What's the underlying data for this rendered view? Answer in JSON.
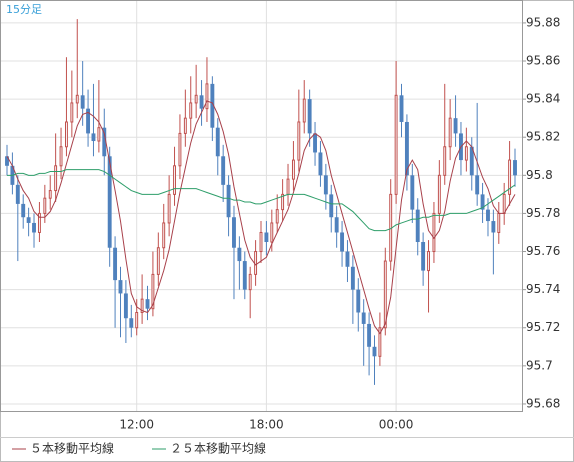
{
  "chart_data": {
    "type": "candlestick",
    "title": "15分足",
    "categories": [
      null,
      null,
      null,
      null,
      null,
      null,
      null,
      null,
      null,
      null,
      null,
      null,
      null,
      null,
      null,
      null,
      null,
      null,
      null,
      null,
      null,
      null,
      null,
      null,
      "12:00",
      null,
      null,
      null,
      null,
      null,
      null,
      null,
      null,
      null,
      null,
      null,
      null,
      null,
      null,
      null,
      null,
      null,
      null,
      null,
      null,
      null,
      null,
      null,
      "18:00",
      null,
      null,
      null,
      null,
      null,
      null,
      null,
      null,
      null,
      null,
      null,
      null,
      null,
      null,
      null,
      null,
      null,
      null,
      null,
      null,
      null,
      null,
      null,
      "00:00",
      null,
      null,
      null,
      null,
      null,
      null,
      null,
      null,
      null,
      null,
      null,
      null,
      null,
      null,
      null,
      null,
      null,
      null,
      null,
      null,
      null,
      null
    ],
    "open": [
      95.81,
      95.805,
      95.795,
      95.785,
      95.778,
      95.775,
      95.77,
      95.78,
      95.788,
      95.792,
      95.805,
      95.815,
      95.828,
      95.838,
      95.842,
      95.835,
      95.822,
      95.818,
      95.825,
      95.81,
      95.762,
      95.745,
      95.738,
      95.725,
      95.72,
      95.728,
      95.735,
      95.73,
      95.748,
      95.762,
      95.775,
      95.79,
      95.805,
      95.822,
      95.83,
      95.838,
      95.842,
      95.835,
      95.848,
      95.825,
      95.81,
      95.795,
      95.778,
      95.762,
      95.755,
      95.74,
      95.748,
      95.76,
      95.77,
      95.765,
      95.775,
      95.782,
      95.79,
      95.798,
      95.808,
      95.828,
      95.84,
      95.822,
      95.812,
      95.8,
      95.79,
      95.778,
      95.77,
      95.76,
      95.752,
      95.74,
      95.728,
      95.722,
      95.71,
      95.705,
      95.72,
      95.755,
      95.79,
      95.842,
      95.828,
      95.8,
      95.782,
      95.765,
      95.75,
      95.76,
      95.78,
      95.8,
      95.815,
      95.83,
      95.822,
      95.808,
      95.815,
      95.8,
      95.79,
      95.782,
      95.776,
      95.77,
      95.78,
      95.79,
      95.808
    ],
    "high": [
      95.816,
      95.812,
      95.8,
      95.79,
      95.783,
      95.78,
      95.786,
      95.795,
      95.8,
      95.822,
      95.825,
      95.862,
      95.855,
      95.882,
      95.86,
      95.845,
      95.848,
      95.85,
      95.835,
      95.815,
      95.768,
      95.752,
      95.745,
      95.732,
      95.735,
      95.748,
      95.742,
      95.76,
      95.77,
      95.785,
      95.8,
      95.815,
      95.832,
      95.845,
      95.852,
      95.858,
      95.85,
      95.862,
      95.852,
      95.83,
      95.816,
      95.8,
      95.784,
      95.768,
      95.76,
      95.752,
      95.766,
      95.776,
      95.776,
      95.782,
      95.79,
      95.798,
      95.806,
      95.818,
      95.845,
      95.85,
      95.845,
      95.828,
      95.818,
      95.806,
      95.795,
      95.784,
      95.776,
      95.766,
      95.758,
      95.746,
      95.735,
      95.728,
      95.716,
      95.728,
      95.762,
      95.798,
      95.86,
      95.848,
      95.832,
      95.806,
      95.788,
      95.77,
      95.766,
      95.786,
      95.808,
      95.848,
      95.84,
      95.842,
      95.828,
      95.825,
      95.82,
      95.838,
      95.796,
      95.788,
      95.782,
      95.786,
      95.796,
      95.818,
      95.814
    ],
    "low": [
      95.8,
      95.79,
      95.755,
      95.772,
      95.768,
      95.762,
      95.765,
      95.775,
      95.782,
      95.786,
      95.798,
      95.81,
      95.82,
      95.83,
      95.826,
      95.815,
      95.81,
      95.812,
      95.8,
      95.752,
      95.72,
      95.715,
      95.712,
      95.715,
      95.716,
      95.722,
      95.724,
      95.726,
      95.742,
      95.756,
      95.768,
      95.784,
      95.798,
      95.815,
      95.822,
      95.83,
      95.826,
      95.828,
      95.818,
      95.8,
      95.786,
      95.768,
      95.735,
      95.74,
      95.735,
      95.725,
      95.742,
      95.754,
      95.758,
      95.76,
      95.77,
      95.776,
      95.784,
      95.792,
      95.802,
      95.822,
      95.815,
      95.805,
      95.794,
      95.782,
      95.77,
      95.762,
      95.752,
      95.744,
      95.722,
      95.718,
      95.7,
      95.695,
      95.69,
      95.7,
      95.716,
      95.75,
      95.785,
      95.82,
      95.792,
      95.775,
      95.758,
      95.742,
      95.728,
      95.754,
      95.775,
      95.795,
      95.808,
      95.815,
      95.8,
      95.802,
      95.792,
      95.784,
      95.775,
      95.768,
      95.748,
      95.764,
      95.774,
      95.784,
      95.794
    ],
    "close": [
      95.805,
      95.795,
      95.785,
      95.778,
      95.775,
      95.77,
      95.78,
      95.788,
      95.792,
      95.805,
      95.815,
      95.828,
      95.838,
      95.842,
      95.835,
      95.822,
      95.818,
      95.825,
      95.81,
      95.762,
      95.745,
      95.738,
      95.725,
      95.72,
      95.728,
      95.735,
      95.73,
      95.748,
      95.762,
      95.775,
      95.79,
      95.805,
      95.822,
      95.83,
      95.838,
      95.842,
      95.835,
      95.848,
      95.825,
      95.81,
      95.795,
      95.778,
      95.762,
      95.755,
      95.74,
      95.748,
      95.76,
      95.77,
      95.765,
      95.775,
      95.782,
      95.79,
      95.798,
      95.808,
      95.828,
      95.84,
      95.822,
      95.812,
      95.8,
      95.79,
      95.778,
      95.77,
      95.76,
      95.752,
      95.74,
      95.728,
      95.722,
      95.71,
      95.705,
      95.72,
      95.755,
      95.79,
      95.842,
      95.828,
      95.8,
      95.782,
      95.765,
      95.75,
      95.76,
      95.78,
      95.8,
      95.815,
      95.83,
      95.822,
      95.808,
      95.815,
      95.8,
      95.79,
      95.782,
      95.776,
      95.77,
      95.78,
      95.79,
      95.808,
      95.8
    ],
    "up_color": "#c0504d",
    "down_color": "#4f81bd",
    "series": [
      {
        "name": "５本移動平均線",
        "color": "#a8404a",
        "values": [
          95.81,
          95.805,
          95.798,
          95.792,
          95.788,
          95.781,
          95.778,
          95.778,
          95.781,
          95.787,
          95.796,
          95.806,
          95.816,
          95.826,
          95.832,
          95.833,
          95.831,
          95.828,
          95.822,
          95.807,
          95.792,
          95.776,
          95.756,
          95.738,
          95.731,
          95.729,
          95.728,
          95.732,
          95.741,
          95.75,
          95.761,
          95.776,
          95.791,
          95.804,
          95.817,
          95.827,
          95.833,
          95.839,
          95.838,
          95.832,
          95.823,
          95.811,
          95.794,
          95.78,
          95.766,
          95.757,
          95.753,
          95.755,
          95.757,
          95.764,
          95.77,
          95.776,
          95.782,
          95.791,
          95.801,
          95.813,
          95.819,
          95.822,
          95.82,
          95.813,
          95.8,
          95.79,
          95.78,
          95.77,
          95.76,
          95.75,
          95.74,
          95.73,
          95.721,
          95.717,
          95.722,
          95.736,
          95.762,
          95.787,
          95.803,
          95.808,
          95.803,
          95.785,
          95.771,
          95.767,
          95.771,
          95.781,
          95.797,
          95.809,
          95.815,
          95.818,
          95.815,
          95.807,
          95.799,
          95.793,
          95.784,
          95.78,
          95.78,
          95.785,
          95.79
        ]
      },
      {
        "name": "２５本移動平均線",
        "color": "#2e9e6a",
        "values": [
          95.8,
          95.8,
          95.801,
          95.801,
          95.8,
          95.8,
          95.801,
          95.801,
          95.802,
          95.802,
          95.802,
          95.803,
          95.803,
          95.803,
          95.803,
          95.803,
          95.803,
          95.803,
          95.802,
          95.8,
          95.798,
          95.796,
          95.794,
          95.792,
          95.791,
          95.79,
          95.79,
          95.79,
          95.79,
          95.791,
          95.792,
          95.793,
          95.793,
          95.793,
          95.793,
          95.793,
          95.792,
          95.791,
          95.79,
          95.789,
          95.788,
          95.788,
          95.787,
          95.787,
          95.786,
          95.786,
          95.785,
          95.785,
          95.786,
          95.787,
          95.788,
          95.789,
          95.79,
          95.79,
          95.79,
          95.79,
          95.789,
          95.788,
          95.787,
          95.786,
          95.785,
          95.785,
          95.785,
          95.783,
          95.781,
          95.778,
          95.775,
          95.772,
          95.771,
          95.771,
          95.771,
          95.772,
          95.774,
          95.775,
          95.776,
          95.777,
          95.777,
          95.778,
          95.778,
          95.779,
          95.779,
          95.779,
          95.78,
          95.78,
          95.78,
          95.78,
          95.781,
          95.782,
          95.783,
          95.785,
          95.787,
          95.789,
          95.791,
          95.793,
          95.795
        ]
      }
    ],
    "ylim": [
      95.6763,
      95.8915
    ],
    "yticks": [
      95.68,
      95.7,
      95.72,
      95.74,
      95.76,
      95.78,
      95.8,
      95.82,
      95.84,
      95.86,
      95.88
    ],
    "grid": true
  }
}
